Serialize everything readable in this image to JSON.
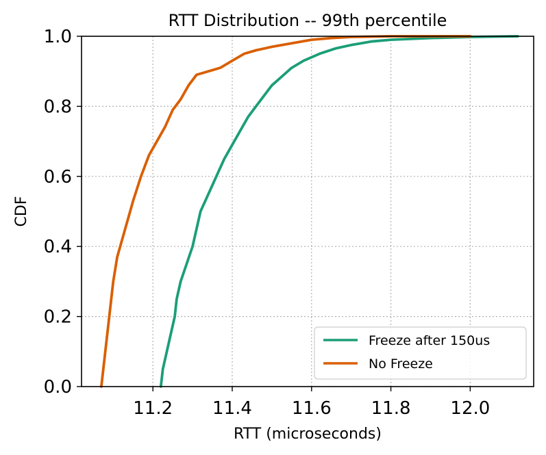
{
  "chart_data": {
    "type": "line",
    "title": "RTT Distribution -- 99th percentile",
    "xlabel": "RTT (microseconds)",
    "ylabel": "CDF",
    "xlim": [
      11.02,
      12.16
    ],
    "ylim": [
      0.0,
      1.0
    ],
    "xticks": [
      11.2,
      11.4,
      11.6,
      11.8,
      12.0
    ],
    "xtick_labels": [
      "11.2",
      "11.4",
      "11.6",
      "11.8",
      "12.0"
    ],
    "yticks": [
      0.0,
      0.2,
      0.4,
      0.6,
      0.8,
      1.0
    ],
    "ytick_labels": [
      "0.0",
      "0.2",
      "0.4",
      "0.6",
      "0.8",
      "1.0"
    ],
    "grid": true,
    "legend_position": "lower-right",
    "series": [
      {
        "name": "Freeze after 150us",
        "color": "#1b9e77",
        "x": [
          11.22,
          11.225,
          11.235,
          11.245,
          11.255,
          11.26,
          11.27,
          11.285,
          11.3,
          11.31,
          11.32,
          11.34,
          11.36,
          11.38,
          11.4,
          11.42,
          11.44,
          11.46,
          11.48,
          11.5,
          11.52,
          11.55,
          11.58,
          11.62,
          11.66,
          11.7,
          11.75,
          11.8,
          11.9,
          12.0,
          12.12
        ],
        "y": [
          0.0,
          0.05,
          0.1,
          0.15,
          0.2,
          0.25,
          0.3,
          0.35,
          0.4,
          0.45,
          0.5,
          0.55,
          0.6,
          0.65,
          0.69,
          0.73,
          0.77,
          0.8,
          0.83,
          0.86,
          0.88,
          0.91,
          0.93,
          0.95,
          0.965,
          0.975,
          0.985,
          0.99,
          0.995,
          0.998,
          1.0
        ]
      },
      {
        "name": "No Freeze",
        "color": "#d95f02",
        "x": [
          11.07,
          11.075,
          11.08,
          11.09,
          11.1,
          11.11,
          11.13,
          11.15,
          11.17,
          11.19,
          11.21,
          11.23,
          11.25,
          11.27,
          11.29,
          11.31,
          11.34,
          11.37,
          11.4,
          11.43,
          11.46,
          11.5,
          11.55,
          11.6,
          11.65,
          11.7,
          11.8,
          11.9,
          12.0
        ],
        "y": [
          0.0,
          0.05,
          0.1,
          0.2,
          0.3,
          0.37,
          0.45,
          0.53,
          0.6,
          0.66,
          0.7,
          0.74,
          0.79,
          0.82,
          0.86,
          0.89,
          0.9,
          0.91,
          0.93,
          0.95,
          0.96,
          0.97,
          0.98,
          0.99,
          0.995,
          0.998,
          1.0,
          1.0,
          1.0
        ]
      }
    ]
  }
}
